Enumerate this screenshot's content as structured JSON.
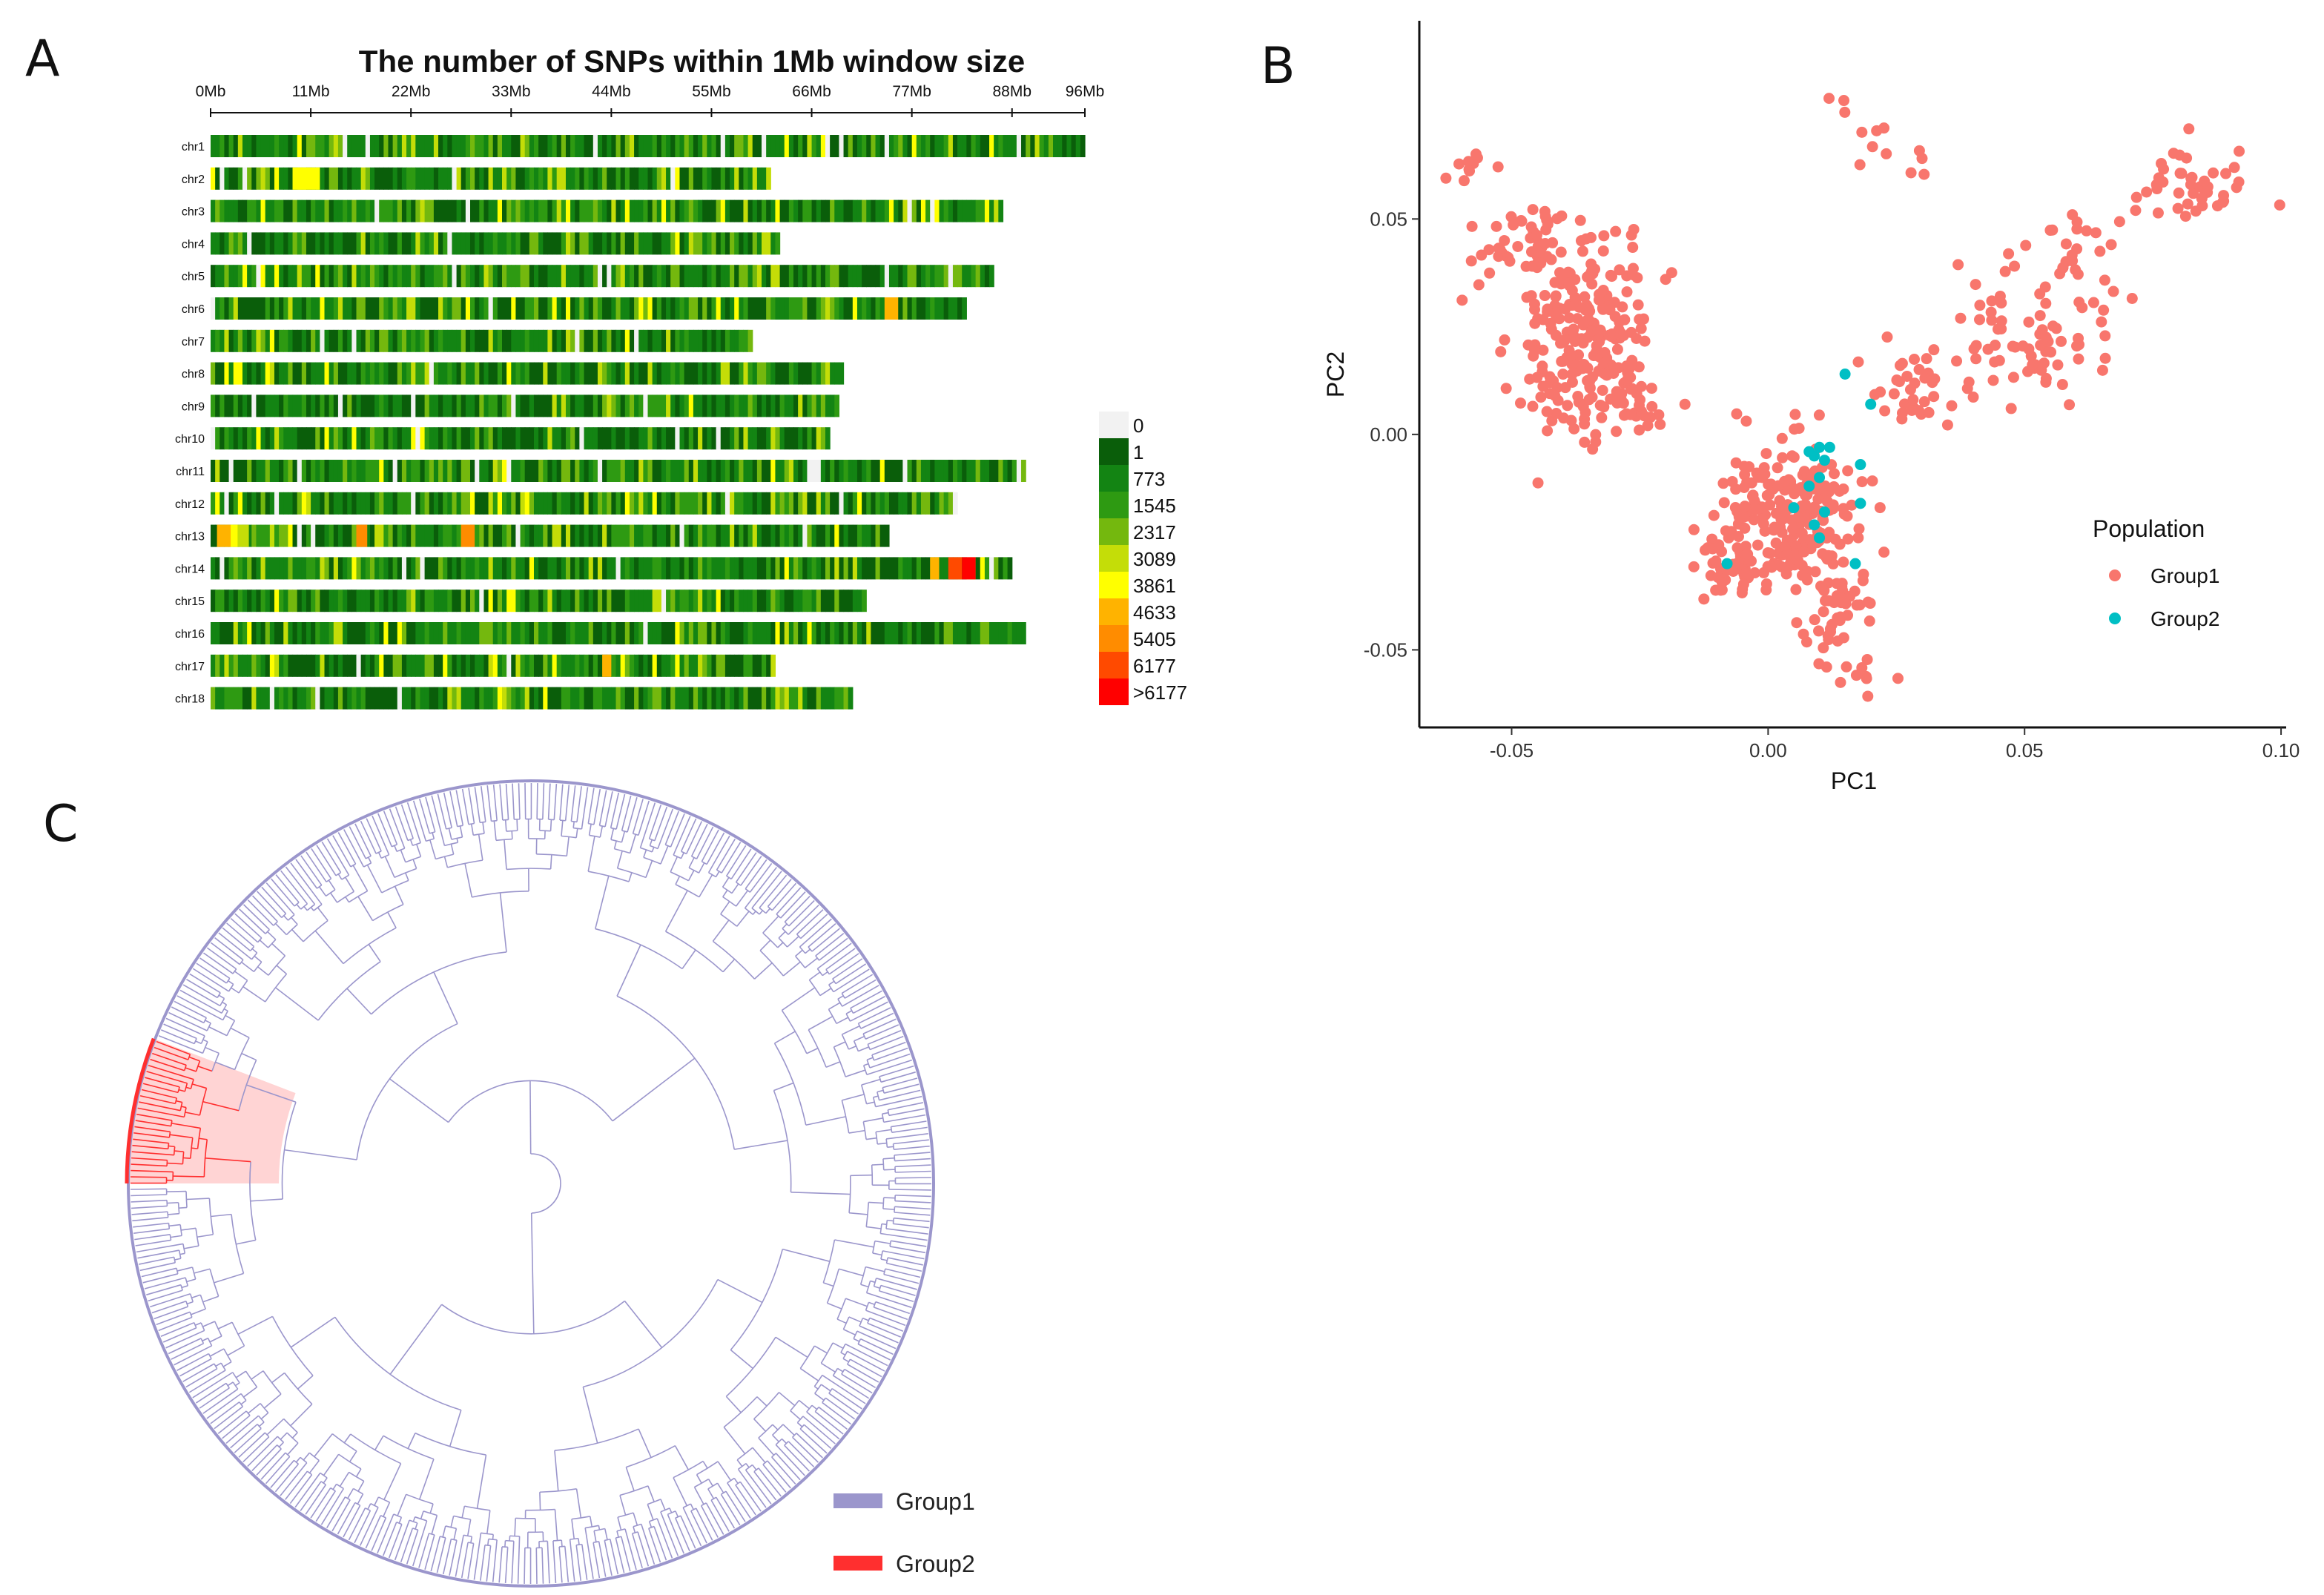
{
  "panel_labels": {
    "a": "A",
    "b": "B",
    "c": "C"
  },
  "chart_data": [
    {
      "type": "heatmap",
      "title": "The number of SNPs within 1Mb window size",
      "x_ticks": [
        "0Mb",
        "11Mb",
        "22Mb",
        "33Mb",
        "44Mb",
        "55Mb",
        "66Mb",
        "77Mb",
        "88Mb",
        "96Mb"
      ],
      "x_tick_values": [
        0,
        11,
        22,
        33,
        44,
        55,
        66,
        77,
        88,
        96
      ],
      "xlim": [
        0,
        96
      ],
      "chromosomes": [
        {
          "name": "chr1",
          "length": 96
        },
        {
          "name": "chr2",
          "length": 61.5
        },
        {
          "name": "chr3",
          "length": 86.7
        },
        {
          "name": "chr4",
          "length": 62.3
        },
        {
          "name": "chr5",
          "length": 85.8
        },
        {
          "name": "chr6",
          "length": 83
        },
        {
          "name": "chr7",
          "length": 59.2
        },
        {
          "name": "chr8",
          "length": 69.2
        },
        {
          "name": "chr9",
          "length": 69
        },
        {
          "name": "chr10",
          "length": 68
        },
        {
          "name": "chr11",
          "length": 89.5
        },
        {
          "name": "chr12",
          "length": 81.7
        },
        {
          "name": "chr13",
          "length": 74.5
        },
        {
          "name": "chr14",
          "length": 87.7
        },
        {
          "name": "chr15",
          "length": 71.6
        },
        {
          "name": "chr16",
          "length": 89.2
        },
        {
          "name": "chr17",
          "length": 61.6
        },
        {
          "name": "chr18",
          "length": 70.1
        }
      ],
      "legend": {
        "labels": [
          "0",
          "1",
          "773",
          "1545",
          "2317",
          "3089",
          "3861",
          "4633",
          "5405",
          "6177",
          ">6177"
        ],
        "colors": [
          "#f2f2f2",
          "#0a5e0a",
          "#138413",
          "#2e9a12",
          "#74b80e",
          "#c4dd08",
          "#ffff00",
          "#ffb300",
          "#ff8c00",
          "#ff4a00",
          "#ff0000"
        ]
      }
    },
    {
      "type": "scatter",
      "xlabel": "PC1",
      "ylabel": "PC2",
      "xlim": [
        -0.068,
        0.101
      ],
      "ylim": [
        -0.068,
        0.096
      ],
      "x_ticks": [
        "-0.05",
        "0.00",
        "0.05",
        "0.10"
      ],
      "x_tick_values": [
        -0.05,
        0,
        0.05,
        0.1
      ],
      "y_ticks": [
        "-0.05",
        "0.00",
        "0.05"
      ],
      "y_tick_values": [
        -0.05,
        0,
        0.05
      ],
      "legend_title": "Population",
      "series": [
        {
          "name": "Group1",
          "color": "#f8766d",
          "clusters": [
            {
              "cx": -0.047,
              "cy": 0.044,
              "sx": 0.006,
              "sy": 0.006,
              "n": 50
            },
            {
              "cx": -0.034,
              "cy": 0.033,
              "sx": 0.006,
              "sy": 0.007,
              "n": 90
            },
            {
              "cx": -0.036,
              "cy": 0.017,
              "sx": 0.006,
              "sy": 0.008,
              "n": 140
            },
            {
              "cx": -0.028,
              "cy": 0.006,
              "sx": 0.004,
              "sy": 0.004,
              "n": 30
            },
            {
              "cx": -0.058,
              "cy": 0.063,
              "sx": 0.003,
              "sy": 0.003,
              "n": 10
            },
            {
              "cx": 0.005,
              "cy": -0.018,
              "sx": 0.007,
              "sy": 0.008,
              "n": 220
            },
            {
              "cx": -0.006,
              "cy": -0.03,
              "sx": 0.004,
              "sy": 0.004,
              "n": 50
            },
            {
              "cx": 0.013,
              "cy": -0.04,
              "sx": 0.004,
              "sy": 0.005,
              "n": 40
            },
            {
              "cx": 0.018,
              "cy": -0.055,
              "sx": 0.003,
              "sy": 0.003,
              "n": 10
            },
            {
              "cx": 0.03,
              "cy": 0.01,
              "sx": 0.006,
              "sy": 0.006,
              "n": 40
            },
            {
              "cx": 0.048,
              "cy": 0.02,
              "sx": 0.007,
              "sy": 0.007,
              "n": 50
            },
            {
              "cx": 0.06,
              "cy": 0.038,
              "sx": 0.006,
              "sy": 0.008,
              "n": 40
            },
            {
              "cx": 0.082,
              "cy": 0.058,
              "sx": 0.006,
              "sy": 0.004,
              "n": 45
            },
            {
              "cx": 0.019,
              "cy": 0.073,
              "sx": 0.003,
              "sy": 0.007,
              "n": 9
            },
            {
              "cx": 0.029,
              "cy": 0.063,
              "sx": 0.003,
              "sy": 0.002,
              "n": 4
            }
          ]
        },
        {
          "name": "Group2",
          "color": "#00bfc4",
          "points": [
            [
              0.015,
              0.014
            ],
            [
              0.02,
              0.007
            ],
            [
              0.008,
              -0.004
            ],
            [
              0.01,
              -0.003
            ],
            [
              0.012,
              -0.003
            ],
            [
              0.009,
              -0.005
            ],
            [
              0.011,
              -0.006
            ],
            [
              0.018,
              -0.007
            ],
            [
              0.01,
              -0.01
            ],
            [
              0.008,
              -0.012
            ],
            [
              0.005,
              -0.017
            ],
            [
              0.011,
              -0.018
            ],
            [
              0.018,
              -0.016
            ],
            [
              0.009,
              -0.021
            ],
            [
              0.01,
              -0.024
            ],
            [
              0.017,
              -0.03
            ],
            [
              -0.008,
              -0.03
            ]
          ]
        }
      ]
    },
    {
      "type": "dendrogram",
      "layout": "circular",
      "leaves": 400,
      "legend": [
        {
          "label": "Group1",
          "color": "#9b96cc"
        },
        {
          "label": "Group2",
          "color": "#ff2f2f"
        }
      ]
    }
  ]
}
